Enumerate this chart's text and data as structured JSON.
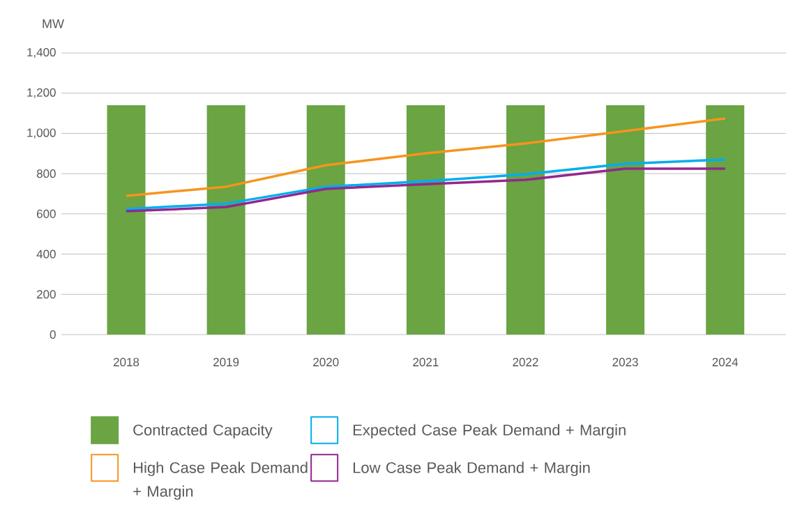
{
  "chart_data": {
    "type": "bar",
    "ylabel": "MW",
    "categories": [
      "2018",
      "2019",
      "2020",
      "2021",
      "2022",
      "2023",
      "2024"
    ],
    "series": [
      {
        "name": "Contracted Capacity",
        "color": "#6aa443",
        "values": [
          1140,
          1140,
          1140,
          1140,
          1140,
          1140,
          1140
        ]
      },
      {
        "name": "Expected Case Peak Demand + Margin",
        "type": "line",
        "color": "#00aeef",
        "values": [
          624,
          651,
          735,
          762,
          797,
          849,
          870
        ]
      },
      {
        "name": "High Case Peak Demand + Margin",
        "type": "line",
        "color": "#f7941d",
        "values": [
          690,
          735,
          842,
          901,
          950,
          1012,
          1074
        ]
      },
      {
        "name": "Low Case Peak Demand + Margin",
        "type": "line",
        "color": "#92278f",
        "values": [
          613,
          634,
          724,
          748,
          769,
          825,
          825
        ]
      }
    ],
    "ylim": [
      0,
      1400
    ],
    "yticks": [
      0,
      200,
      400,
      600,
      800,
      {
        "value": 1000,
        "label": "1,000"
      },
      {
        "value": 1200,
        "label": "1,200"
      },
      {
        "value": 1400,
        "label": "1,400"
      }
    ],
    "grid": "y",
    "legend": "bottom"
  }
}
